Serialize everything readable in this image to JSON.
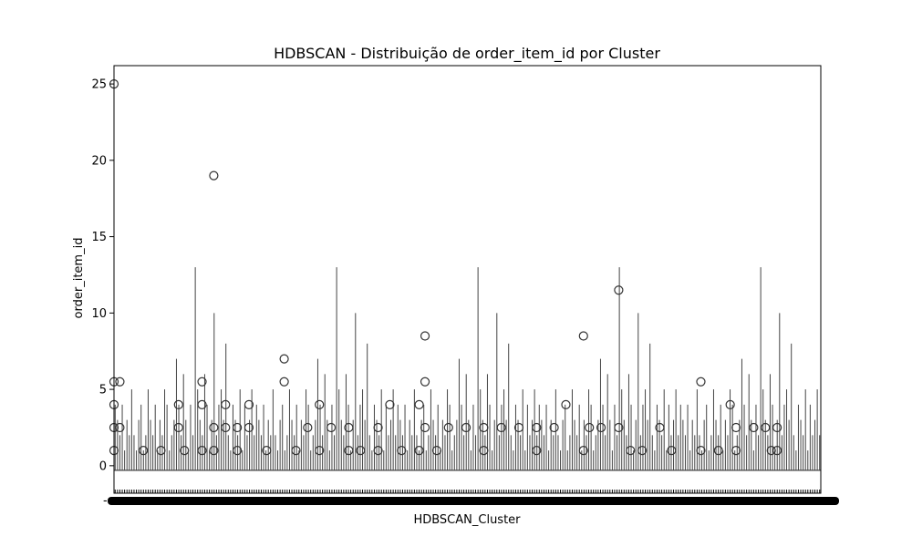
{
  "chart_data": {
    "type": "box",
    "title": "HDBSCAN - Distribuição de order_item_id por Cluster",
    "xlabel": "HDBSCAN_Cluster",
    "ylabel": "order_item_id",
    "ylim": [
      -1.8,
      26.2
    ],
    "yticks": [
      0,
      5,
      10,
      15,
      20,
      25
    ],
    "x_tick_labels_note": "-",
    "grid": false,
    "series": [
      {
        "clusters_count": 300,
        "whisker_tops": [
          4,
          3,
          2,
          4,
          1,
          3,
          2,
          5,
          2,
          1,
          3,
          4,
          1,
          2,
          5,
          3,
          2,
          4,
          1,
          3,
          2,
          5,
          4,
          1,
          2,
          3,
          7,
          4,
          2,
          6,
          3,
          1,
          4,
          2,
          13,
          5,
          3,
          2,
          6,
          4,
          1,
          3,
          10,
          2,
          4,
          5,
          3,
          8,
          2,
          1,
          4,
          3,
          2,
          5,
          1,
          4,
          2,
          3,
          5,
          2
        ],
        "outliers": [
          {
            "cluster": 0,
            "values": [
              25,
              5.5,
              4,
              2.5,
              1
            ]
          },
          {
            "cluster": 1,
            "values": [
              5.5,
              2.5
            ]
          },
          {
            "cluster": 5,
            "values": [
              1
            ]
          },
          {
            "cluster": 8,
            "values": [
              1
            ]
          },
          {
            "cluster": 11,
            "values": [
              4,
              2.5
            ]
          },
          {
            "cluster": 12,
            "values": [
              1
            ]
          },
          {
            "cluster": 15,
            "values": [
              5.5,
              4,
              1
            ]
          },
          {
            "cluster": 17,
            "values": [
              19,
              2.5,
              1
            ]
          },
          {
            "cluster": 19,
            "values": [
              2.5,
              4
            ]
          },
          {
            "cluster": 21,
            "values": [
              2.5,
              1
            ]
          },
          {
            "cluster": 23,
            "values": [
              2.5,
              4
            ]
          },
          {
            "cluster": 26,
            "values": [
              1
            ]
          },
          {
            "cluster": 29,
            "values": [
              5.5,
              7
            ]
          },
          {
            "cluster": 31,
            "values": [
              1
            ]
          },
          {
            "cluster": 33,
            "values": [
              2.5
            ]
          },
          {
            "cluster": 35,
            "values": [
              4,
              1
            ]
          },
          {
            "cluster": 37,
            "values": [
              2.5
            ]
          },
          {
            "cluster": 40,
            "values": [
              2.5,
              1
            ]
          },
          {
            "cluster": 42,
            "values": [
              1
            ]
          },
          {
            "cluster": 45,
            "values": [
              2.5,
              1
            ]
          },
          {
            "cluster": 47,
            "values": [
              4
            ]
          },
          {
            "cluster": 49,
            "values": [
              1
            ]
          },
          {
            "cluster": 52,
            "values": [
              4,
              1
            ]
          },
          {
            "cluster": 53,
            "values": [
              8.5,
              5.5,
              2.5
            ]
          },
          {
            "cluster": 55,
            "values": [
              1
            ]
          },
          {
            "cluster": 57,
            "values": [
              2.5
            ]
          },
          {
            "cluster": 60,
            "values": [
              2.5
            ]
          },
          {
            "cluster": 63,
            "values": [
              2.5,
              1
            ]
          },
          {
            "cluster": 66,
            "values": [
              2.5
            ]
          },
          {
            "cluster": 69,
            "values": [
              2.5
            ]
          },
          {
            "cluster": 72,
            "values": [
              2.5,
              1
            ]
          },
          {
            "cluster": 75,
            "values": [
              2.5
            ]
          },
          {
            "cluster": 77,
            "values": [
              4
            ]
          },
          {
            "cluster": 80,
            "values": [
              1,
              8.5
            ]
          },
          {
            "cluster": 81,
            "values": [
              2.5
            ]
          },
          {
            "cluster": 83,
            "values": [
              2.5
            ]
          },
          {
            "cluster": 86,
            "values": [
              11.5,
              2.5
            ]
          },
          {
            "cluster": 88,
            "values": [
              1
            ]
          },
          {
            "cluster": 90,
            "values": [
              1
            ]
          },
          {
            "cluster": 93,
            "values": [
              2.5
            ]
          },
          {
            "cluster": 95,
            "values": [
              1
            ]
          },
          {
            "cluster": 100,
            "values": [
              5.5,
              1
            ]
          },
          {
            "cluster": 103,
            "values": [
              1
            ]
          },
          {
            "cluster": 105,
            "values": [
              4
            ]
          },
          {
            "cluster": 106,
            "values": [
              2.5,
              1
            ]
          },
          {
            "cluster": 109,
            "values": [
              2.5
            ]
          },
          {
            "cluster": 111,
            "values": [
              2.5
            ]
          },
          {
            "cluster": 112,
            "values": [
              1
            ]
          },
          {
            "cluster": 113,
            "values": [
              2.5,
              1
            ]
          }
        ]
      }
    ]
  }
}
